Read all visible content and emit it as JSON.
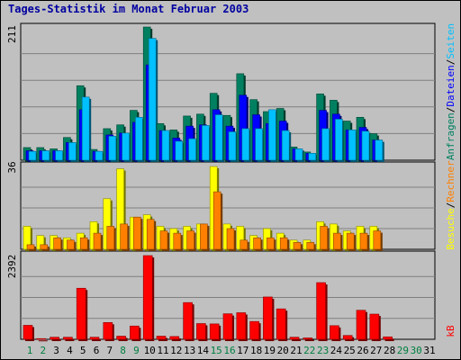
{
  "title": "Tages-Statistik im Monat Februar 2003",
  "colors": {
    "background": "#c0c0c0",
    "grid": "#808080",
    "hits": "#008060",
    "files": "#0000ff",
    "pages": "#00c0ff",
    "visits": "#ffff00",
    "sites": "#ff8000",
    "kbytes": "#ff0000",
    "weekday_label": "#000000",
    "weekend_label": "#008040"
  },
  "chart_data": [
    {
      "type": "bar",
      "panel": "top",
      "y_max_label": "211",
      "ylim": [
        0,
        211
      ],
      "grid": true,
      "x": [
        1,
        2,
        3,
        4,
        5,
        6,
        7,
        8,
        9,
        10,
        11,
        12,
        13,
        14,
        15,
        16,
        17,
        18,
        19,
        20,
        21,
        22,
        23,
        24,
        25,
        26,
        27,
        28
      ],
      "series": [
        {
          "name": "Anfragen",
          "color": "#008060",
          "values": [
            20,
            20,
            18,
            36,
            118,
            17,
            50,
            56,
            79,
            211,
            58,
            48,
            70,
            73,
            106,
            71,
            137,
            96,
            77,
            82,
            21,
            13,
            105,
            95,
            62,
            68,
            42,
            0
          ]
        },
        {
          "name": "Dateien",
          "color": "#0000ff",
          "values": [
            15,
            15,
            15,
            28,
            80,
            14,
            40,
            43,
            60,
            151,
            47,
            35,
            54,
            56,
            80,
            54,
            103,
            72,
            58,
            62,
            18,
            11,
            79,
            73,
            48,
            52,
            32,
            0
          ]
        },
        {
          "name": "Seiten",
          "color": "#00c0ff",
          "values": [
            14,
            15,
            15,
            28,
            100,
            14,
            38,
            43,
            68,
            193,
            47,
            30,
            34,
            55,
            72,
            45,
            50,
            50,
            80,
            47,
            18,
            11,
            50,
            65,
            48,
            46,
            32,
            0
          ]
        }
      ]
    },
    {
      "type": "bar",
      "panel": "middle",
      "y_max_label": "36",
      "ylim": [
        0,
        36
      ],
      "grid": true,
      "x": [
        1,
        2,
        3,
        4,
        5,
        6,
        7,
        8,
        9,
        10,
        11,
        12,
        13,
        14,
        15,
        16,
        17,
        18,
        19,
        20,
        21,
        22,
        23,
        24,
        25,
        26,
        27,
        28
      ],
      "series": [
        {
          "name": "Besuche",
          "color": "#ffff00",
          "values": [
            10,
            6,
            6,
            5,
            7,
            12,
            22,
            35,
            14,
            15,
            10,
            9,
            10,
            11,
            36,
            11,
            10,
            6,
            9,
            7,
            4,
            4,
            12,
            11,
            8,
            10,
            10,
            0
          ]
        },
        {
          "name": "Rechner",
          "color": "#ff8000",
          "values": [
            2,
            2,
            5,
            4,
            5,
            7,
            10,
            11,
            14,
            13,
            8,
            7,
            8,
            11,
            25,
            9,
            4,
            5,
            5,
            5,
            3,
            3,
            10,
            7,
            7,
            7,
            8,
            0
          ]
        }
      ]
    },
    {
      "type": "bar",
      "panel": "bottom",
      "y_max_label": "2392",
      "ylim": [
        0,
        2392
      ],
      "grid": true,
      "x": [
        1,
        2,
        3,
        4,
        5,
        6,
        7,
        8,
        9,
        10,
        11,
        12,
        13,
        14,
        15,
        16,
        17,
        18,
        19,
        20,
        21,
        22,
        23,
        24,
        25,
        26,
        27,
        28
      ],
      "series": [
        {
          "name": "kB",
          "color": "#ff0000",
          "values": [
            400,
            20,
            60,
            60,
            1460,
            60,
            480,
            90,
            380,
            2392,
            90,
            80,
            1050,
            450,
            440,
            730,
            760,
            510,
            1210,
            870,
            60,
            40,
            1620,
            390,
            110,
            830,
            720,
            70
          ]
        }
      ]
    }
  ],
  "x_labels": [
    {
      "day": "1",
      "weekend": true
    },
    {
      "day": "2",
      "weekend": true
    },
    {
      "day": "3",
      "weekend": false
    },
    {
      "day": "4",
      "weekend": false
    },
    {
      "day": "5",
      "weekend": false
    },
    {
      "day": "6",
      "weekend": false
    },
    {
      "day": "7",
      "weekend": false
    },
    {
      "day": "8",
      "weekend": true
    },
    {
      "day": "9",
      "weekend": true
    },
    {
      "day": "10",
      "weekend": false
    },
    {
      "day": "11",
      "weekend": false
    },
    {
      "day": "12",
      "weekend": false
    },
    {
      "day": "13",
      "weekend": false
    },
    {
      "day": "14",
      "weekend": false
    },
    {
      "day": "15",
      "weekend": true
    },
    {
      "day": "16",
      "weekend": true
    },
    {
      "day": "17",
      "weekend": false
    },
    {
      "day": "18",
      "weekend": false
    },
    {
      "day": "19",
      "weekend": false
    },
    {
      "day": "20",
      "weekend": false
    },
    {
      "day": "21",
      "weekend": false
    },
    {
      "day": "22",
      "weekend": true
    },
    {
      "day": "23",
      "weekend": true
    },
    {
      "day": "24",
      "weekend": false
    },
    {
      "day": "25",
      "weekend": false
    },
    {
      "day": "26",
      "weekend": false
    },
    {
      "day": "27",
      "weekend": false
    },
    {
      "day": "28",
      "weekend": false
    },
    {
      "day": "29",
      "weekend": true
    },
    {
      "day": "30",
      "weekend": true
    },
    {
      "day": "31",
      "weekend": false
    }
  ],
  "right_legend": {
    "top": [
      {
        "text": "Anfragen",
        "color": "#008060"
      },
      {
        "text": "/",
        "color": "#000000"
      },
      {
        "text": "Dateien",
        "color": "#0000ff"
      },
      {
        "text": "/",
        "color": "#000000"
      },
      {
        "text": "Seiten",
        "color": "#00c0ff"
      }
    ],
    "middle": [
      {
        "text": "Besuche",
        "color": "#ffff00"
      },
      {
        "text": "/",
        "color": "#000000"
      },
      {
        "text": "Rechner",
        "color": "#ff8000"
      }
    ],
    "bottom": [
      {
        "text": "kB",
        "color": "#ff0000"
      }
    ]
  }
}
